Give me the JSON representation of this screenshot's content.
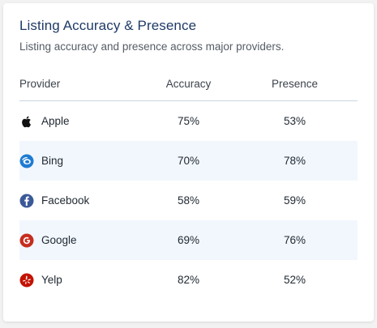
{
  "card": {
    "title": "Listing Accuracy & Presence",
    "subtitle": "Listing accuracy and presence across major providers."
  },
  "table": {
    "headers": {
      "provider": "Provider",
      "accuracy": "Accuracy",
      "presence": "Presence"
    },
    "rows": [
      {
        "provider": "Apple",
        "icon": "apple-icon",
        "accuracy": "75%",
        "presence": "53%"
      },
      {
        "provider": "Bing",
        "icon": "bing-icon",
        "accuracy": "70%",
        "presence": "78%"
      },
      {
        "provider": "Facebook",
        "icon": "facebook-icon",
        "accuracy": "58%",
        "presence": "59%"
      },
      {
        "provider": "Google",
        "icon": "google-icon",
        "accuracy": "69%",
        "presence": "76%"
      },
      {
        "provider": "Yelp",
        "icon": "yelp-icon",
        "accuracy": "82%",
        "presence": "52%"
      }
    ]
  },
  "colors": {
    "title": "#1f3a66",
    "row_stripe": "#f2f7fd",
    "bing": "#1e7bd2",
    "facebook": "#3b5998",
    "google": "#c62d1f",
    "yelp": "#c41200"
  }
}
